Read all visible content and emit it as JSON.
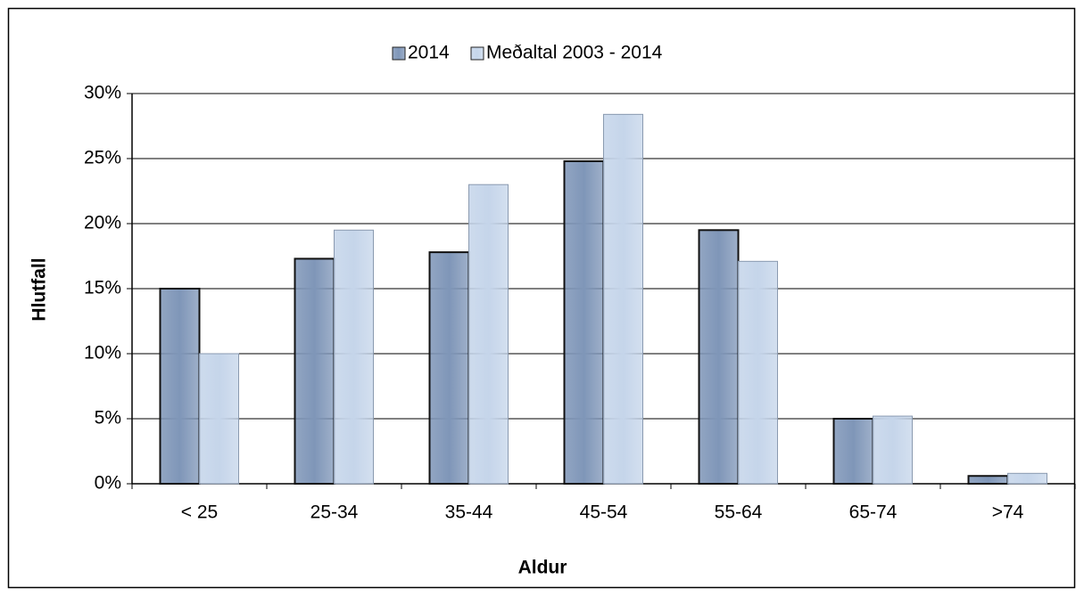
{
  "chart_data": {
    "type": "bar",
    "categories": [
      "< 25",
      "25-34",
      "35-44",
      "45-54",
      "55-64",
      "65-74",
      ">74"
    ],
    "series": [
      {
        "name": "2014",
        "color": "#7f96b8",
        "values": [
          15,
          17.3,
          17.8,
          24.8,
          19.5,
          5.0,
          0.6
        ]
      },
      {
        "name": "Meðaltal 2003 - 2014",
        "color": "#c5d5ea",
        "values": [
          10,
          19.5,
          23,
          28.4,
          17.1,
          5.2,
          0.8
        ]
      }
    ],
    "x_label": "Aldur",
    "y_label": "Hlutfall",
    "ylim": [
      0,
      30
    ],
    "yticks": [
      {
        "value": 0,
        "label": "0%"
      },
      {
        "value": 5,
        "label": "5%"
      },
      {
        "value": 10,
        "label": "10%"
      },
      {
        "value": 15,
        "label": "15%"
      },
      {
        "value": 20,
        "label": "20%"
      },
      {
        "value": 25,
        "label": "25%"
      },
      {
        "value": 30,
        "label": "30%"
      }
    ],
    "grid": true,
    "legend": "top"
  }
}
